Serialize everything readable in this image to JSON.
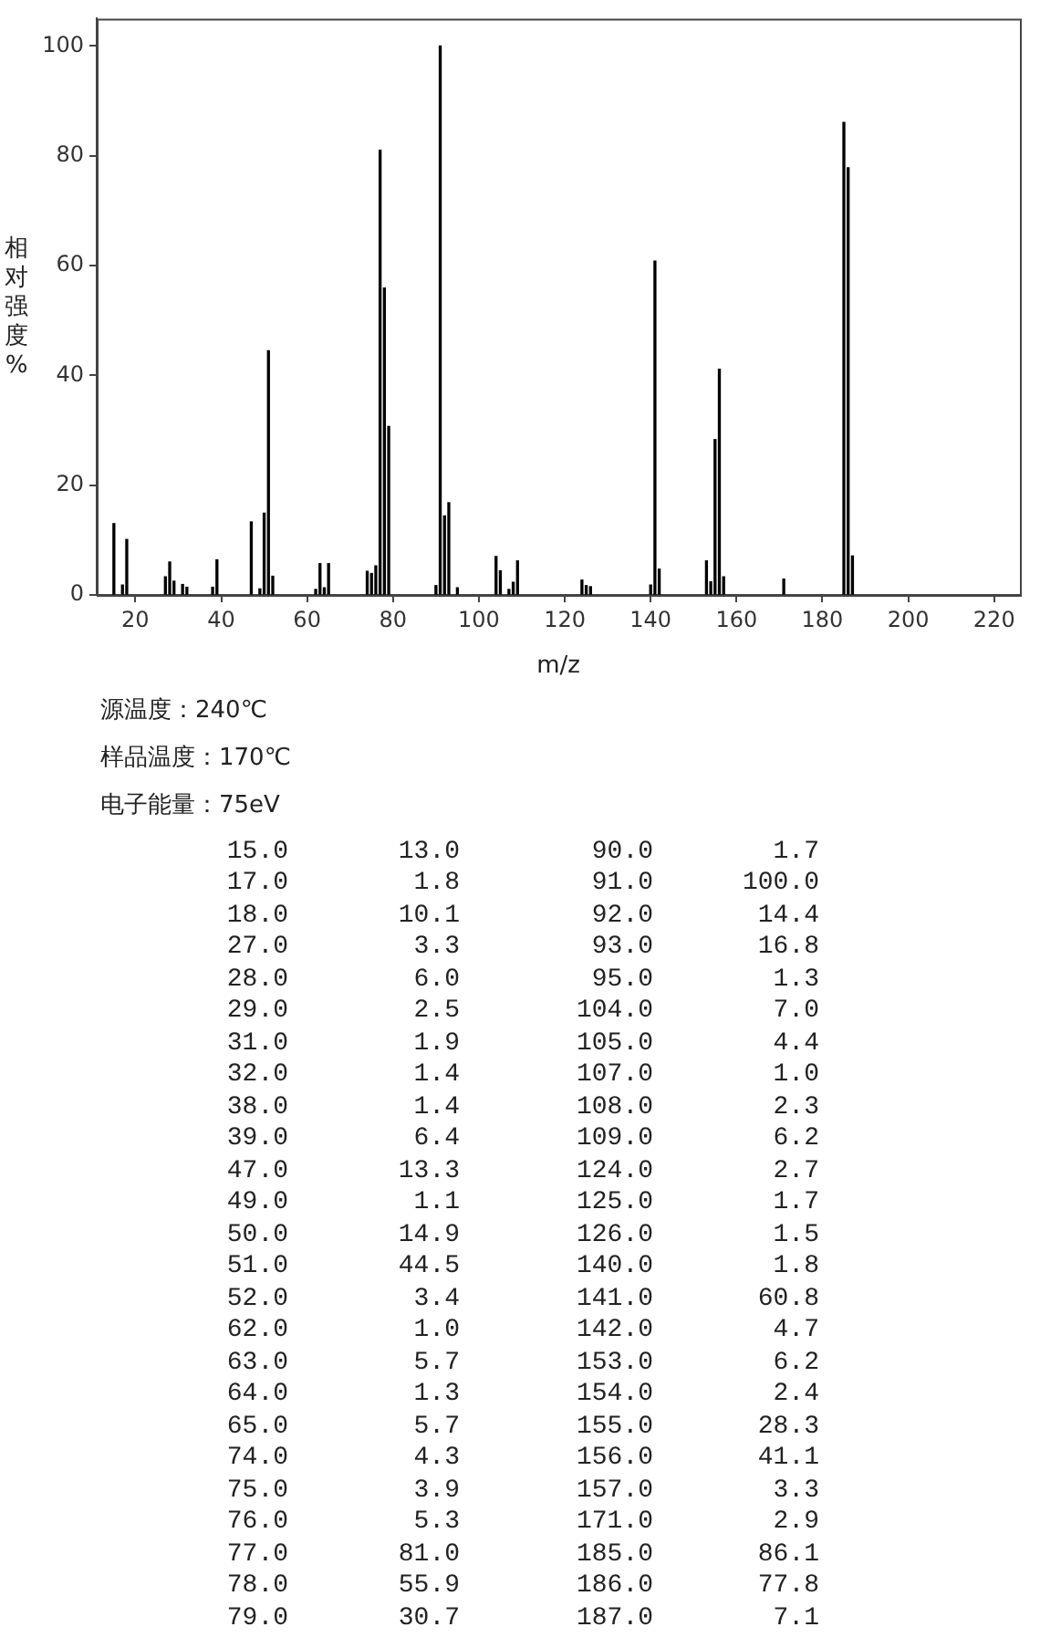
{
  "chart_data": [
    {
      "type": "bar",
      "xlabel": "m/z",
      "ylabel": "相对强度%",
      "color": "#000000",
      "x": [
        15,
        17,
        18,
        27,
        28,
        29,
        31,
        32,
        38,
        39,
        47,
        49,
        50,
        51,
        52,
        62,
        63,
        64,
        65,
        74,
        75,
        76,
        77,
        78,
        79,
        90,
        91,
        92,
        93,
        95,
        104,
        105,
        107,
        108,
        109,
        124,
        125,
        126,
        140,
        141,
        142,
        153,
        154,
        155,
        156,
        157,
        171,
        185,
        186,
        187
      ],
      "values": [
        13.0,
        1.8,
        10.1,
        3.3,
        6.0,
        2.5,
        1.9,
        1.4,
        1.4,
        6.4,
        13.3,
        1.1,
        14.9,
        44.5,
        3.4,
        1.0,
        5.7,
        1.3,
        5.7,
        4.3,
        3.9,
        5.3,
        81.0,
        55.9,
        30.7,
        1.7,
        100.0,
        14.4,
        16.8,
        1.3,
        7.0,
        4.4,
        1.0,
        2.3,
        6.2,
        2.7,
        1.7,
        1.5,
        1.8,
        60.8,
        4.7,
        6.2,
        2.4,
        28.3,
        41.1,
        3.3,
        2.9,
        86.1,
        77.8,
        7.1
      ],
      "xlim": [
        11,
        226
      ],
      "xticks": [
        20,
        40,
        60,
        80,
        100,
        120,
        140,
        160,
        180,
        200,
        220
      ],
      "ylim": [
        0,
        105
      ],
      "yticks": [
        0,
        20,
        40,
        60,
        80,
        100
      ],
      "annotations": [
        "源温度：240℃",
        "样品温度：170℃",
        "电子能量：75eV"
      ]
    },
    {
      "type": "other",
      "annotations": [
        "15.0",
        "13.0",
        "90.0",
        "1.7",
        "17.0",
        "1.8",
        "91.0",
        "100.0",
        "18.0",
        "10.1",
        "92.0",
        "14.4",
        "27.0",
        "3.3",
        "93.0",
        "16.8",
        "28.0",
        "6.0",
        "95.0",
        "1.3",
        "29.0",
        "2.5",
        "104.0",
        "7.0",
        "31.0",
        "1.9",
        "105.0",
        "4.4",
        "32.0",
        "1.4",
        "107.0",
        "1.0",
        "38.0",
        "1.4",
        "108.0",
        "2.3",
        "39.0",
        "6.4",
        "109.0",
        "6.2",
        "47.0",
        "13.3",
        "124.0",
        "2.7",
        "49.0",
        "1.1",
        "125.0",
        "1.7",
        "50.0",
        "14.9",
        "126.0",
        "1.5",
        "51.0",
        "44.5",
        "140.0",
        "1.8",
        "52.0",
        "3.4",
        "141.0",
        "60.8",
        "62.0",
        "1.0",
        "142.0",
        "4.7",
        "63.0",
        "5.7",
        "153.0",
        "6.2",
        "64.0",
        "1.3",
        "154.0",
        "2.4",
        "65.0",
        "5.7",
        "155.0",
        "28.3",
        "74.0",
        "4.3",
        "156.0",
        "41.1",
        "75.0",
        "3.9",
        "157.0",
        "3.3",
        "76.0",
        "5.3",
        "171.0",
        "2.9",
        "77.0",
        "81.0",
        "185.0",
        "86.1",
        "78.0",
        "55.9",
        "186.0",
        "77.8",
        "79.0",
        "30.7",
        "187.0",
        "7.1"
      ]
    }
  ]
}
